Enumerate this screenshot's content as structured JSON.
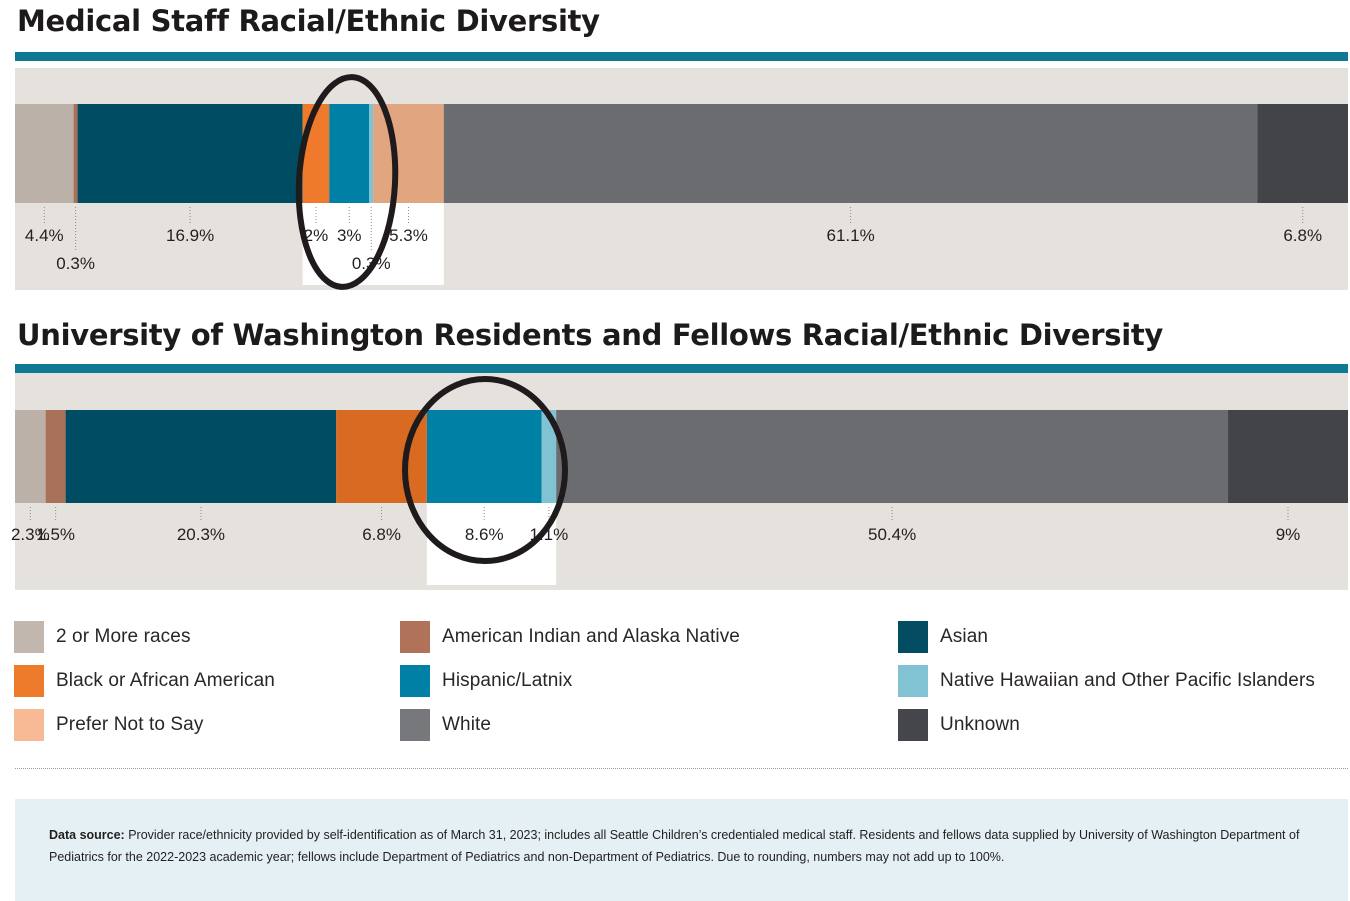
{
  "titles": {
    "chart1": "Medical Staff Racial/Ethnic Diversity",
    "chart2": "University of Washington Residents and Fellows Racial/Ethnic Diversity"
  },
  "colors": {
    "accent_rule": "#0f7894",
    "panel_bg": "#e5e2de",
    "source_bg": "#e4f0f4",
    "highlight_ring": "#1f1a1b"
  },
  "legend": [
    {
      "label": "2 or More races",
      "color": "#c1b7af"
    },
    {
      "label": "American Indian and Alaska Native",
      "color": "#b0735a"
    },
    {
      "label": "Asian",
      "color": "#044c62"
    },
    {
      "label": "Black or African American",
      "color": "#ee7b2c"
    },
    {
      "label": "Hispanic/Latnix",
      "color": "#0180a5"
    },
    {
      "label": "Native Hawaiian and Other Pacific Islanders",
      "color": "#82c3d3"
    },
    {
      "label": "Prefer Not to Say",
      "color": "#f7ba94"
    },
    {
      "label": "White",
      "color": "#77787c"
    },
    {
      "label": "Unknown",
      "color": "#44464b"
    }
  ],
  "chart_data": [
    {
      "type": "bar",
      "orientation": "horizontal-stacked",
      "title": "Medical Staff Racial/Ethnic Diversity",
      "unit": "%",
      "series": [
        {
          "name": "2 or More races",
          "value": 4.4,
          "label": "4.4%",
          "color": "#bcb1a8"
        },
        {
          "name": "American Indian and Alaska Native",
          "value": 0.3,
          "label": "0.3%",
          "color": "#a9705a"
        },
        {
          "name": "Asian",
          "value": 16.9,
          "label": "16.9%",
          "color": "#004c62"
        },
        {
          "name": "Black or African American",
          "value": 2,
          "label": "2%",
          "color": "#ef7a2c"
        },
        {
          "name": "Hispanic/Latnix",
          "value": 3,
          "label": "3%",
          "color": "#0080a4"
        },
        {
          "name": "Native Hawaiian and Other Pacific Islanders",
          "value": 0.3,
          "label": "0.3%",
          "color": "#82c3d3"
        },
        {
          "name": "Prefer Not to Say",
          "value": 5.3,
          "label": "5.3%",
          "color": "#e1a580"
        },
        {
          "name": "White",
          "value": 61.1,
          "label": "61.1%",
          "color": "#6b6c70"
        },
        {
          "name": "Unknown",
          "value": 6.8,
          "label": "6.8%",
          "color": "#424448"
        }
      ],
      "highlighted": [
        "Black or African American",
        "Hispanic/Latnix",
        "Native Hawaiian and Other Pacific Islanders",
        "Prefer Not to Say"
      ]
    },
    {
      "type": "bar",
      "orientation": "horizontal-stacked",
      "title": "University of Washington Residents and Fellows Racial/Ethnic Diversity",
      "unit": "%",
      "series": [
        {
          "name": "2 or More races",
          "value": 2.3,
          "label": "2.3%",
          "color": "#bcb1a8"
        },
        {
          "name": "American Indian and Alaska Native",
          "value": 1.5,
          "label": "1.5%",
          "color": "#a9705a"
        },
        {
          "name": "Asian",
          "value": 20.3,
          "label": "20.3%",
          "color": "#004c62"
        },
        {
          "name": "Black or African American",
          "value": 6.8,
          "label": "6.8%",
          "color": "#d96a22"
        },
        {
          "name": "Hispanic/Latnix",
          "value": 8.6,
          "label": "8.6%",
          "color": "#0080a4"
        },
        {
          "name": "Native Hawaiian and Other Pacific Islanders",
          "value": 1.1,
          "label": "1.1%",
          "color": "#82c3d3"
        },
        {
          "name": "White",
          "value": 50.4,
          "label": "50.4%",
          "color": "#6b6c70"
        },
        {
          "name": "Unknown",
          "value": 9,
          "label": "9%",
          "color": "#424448"
        }
      ],
      "highlighted": [
        "Hispanic/Latnix",
        "Native Hawaiian and Other Pacific Islanders"
      ]
    }
  ],
  "source": {
    "heading": "Data source:",
    "text": " Provider race/ethnicity provided by self-identification as of March 31, 2023; includes all Seattle Children’s credentialed medical staff. Residents and fellows data supplied by University of Washington Department of Pediatrics for the 2022-2023 academic year; fellows include Department of Pediatrics and non-Department of Pediatrics. Due to rounding, numbers may not add up to 100%."
  }
}
